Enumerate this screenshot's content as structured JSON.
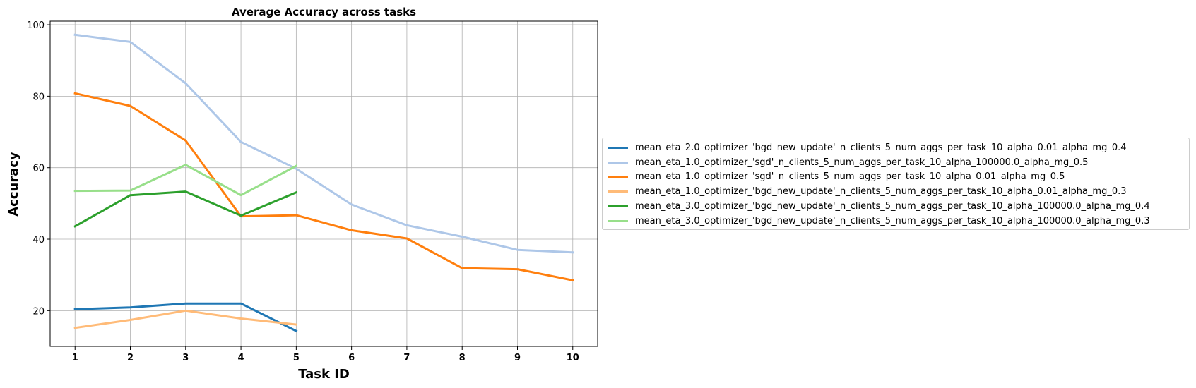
{
  "chart_data": {
    "type": "line",
    "title": "Average Accuracy across tasks",
    "xlabel": "Task ID",
    "ylabel": "Accuracy",
    "xlim": [
      0.55,
      10.45
    ],
    "ylim": [
      10,
      101
    ],
    "xticks": [
      1,
      2,
      3,
      4,
      5,
      6,
      7,
      8,
      9,
      10
    ],
    "yticks": [
      20,
      40,
      60,
      80,
      100
    ],
    "grid": true,
    "legend_position": "outside-right",
    "series": [
      {
        "name": "mean_eta_2.0_optimizer_'bgd_new_update'_n_clients_5_num_aggs_per_task_10_alpha_0.01_alpha_mg_0.4",
        "color": "#1f77b4",
        "x": [
          1,
          2,
          3,
          4,
          5
        ],
        "values": [
          20.4,
          20.9,
          22.0,
          22.0,
          14.3
        ]
      },
      {
        "name": "mean_eta_1.0_optimizer_'sgd'_n_clients_5_num_aggs_per_task_10_alpha_100000.0_alpha_mg_0.5",
        "color": "#aec7e8",
        "x": [
          1,
          2,
          3,
          4,
          5,
          6,
          7,
          8,
          9,
          10
        ],
        "values": [
          97.2,
          95.2,
          83.6,
          67.2,
          59.7,
          49.7,
          43.9,
          40.7,
          37.0,
          36.3
        ]
      },
      {
        "name": "mean_eta_1.0_optimizer_'sgd'_n_clients_5_num_aggs_per_task_10_alpha_0.01_alpha_mg_0.5",
        "color": "#ff7f0e",
        "x": [
          1,
          2,
          3,
          4,
          5,
          6,
          7,
          8,
          9,
          10
        ],
        "values": [
          80.8,
          77.3,
          67.6,
          46.4,
          46.7,
          42.5,
          40.2,
          31.9,
          31.6,
          28.5
        ]
      },
      {
        "name": "mean_eta_1.0_optimizer_'bgd_new_update'_n_clients_5_num_aggs_per_task_10_alpha_0.01_alpha_mg_0.3",
        "color": "#ffbb78",
        "x": [
          1,
          2,
          3,
          4,
          5
        ],
        "values": [
          15.2,
          17.4,
          20.0,
          17.8,
          16.1
        ]
      },
      {
        "name": "mean_eta_3.0_optimizer_'bgd_new_update'_n_clients_5_num_aggs_per_task_10_alpha_100000.0_alpha_mg_0.4",
        "color": "#2ca02c",
        "x": [
          1,
          2,
          3,
          4,
          5
        ],
        "values": [
          43.6,
          52.3,
          53.3,
          46.6,
          53.1
        ]
      },
      {
        "name": "mean_eta_3.0_optimizer_'bgd_new_update'_n_clients_5_num_aggs_per_task_10_alpha_100000.0_alpha_mg_0.3",
        "color": "#98df8a",
        "x": [
          1,
          2,
          3,
          4,
          5
        ],
        "values": [
          53.5,
          53.6,
          60.8,
          52.3,
          60.5
        ]
      }
    ]
  }
}
